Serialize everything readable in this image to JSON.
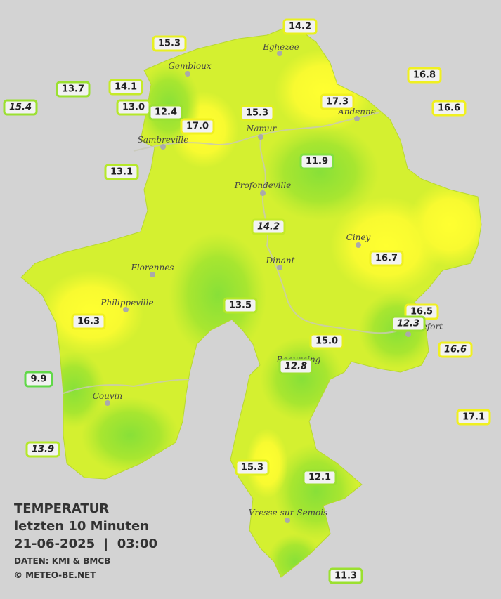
{
  "map": {
    "legend": {
      "title": "TEMPERATUR",
      "subtitle": "letzten 10 Minuten",
      "datetime": "21-06-2025  |  03:00",
      "source": "DATEN: KMI & BMCB",
      "copyright": "© METEO-BE.NET"
    },
    "cities": [
      "Gembloux",
      "Eghezee",
      "Andenne",
      "Namur",
      "Sambreville",
      "Profondeville",
      "Ciney",
      "Dinant",
      "Florennes",
      "Philippeville",
      "Beauraing",
      "Rochefort",
      "Couvin",
      "Vresse-sur-Semois"
    ],
    "stations": [
      {
        "label": "14.2",
        "italic": false,
        "border": "#e8f020"
      },
      {
        "label": "15.3",
        "italic": false,
        "border": "#e8f020"
      },
      {
        "label": "16.8",
        "italic": false,
        "border": "#f0f020"
      },
      {
        "label": "13.7",
        "italic": false,
        "border": "#9be030"
      },
      {
        "label": "14.1",
        "italic": false,
        "border": "#c5ea28"
      },
      {
        "label": "15.4",
        "italic": true,
        "border": "#9be030"
      },
      {
        "label": "13.0",
        "italic": false,
        "border": "#b5e82a"
      },
      {
        "label": "12.4",
        "italic": false,
        "border": "#9be030"
      },
      {
        "label": "17.3",
        "italic": false,
        "border": "#f0f020"
      },
      {
        "label": "16.6",
        "italic": false,
        "border": "#f0f020"
      },
      {
        "label": "15.3",
        "italic": false,
        "border": "#e0f020"
      },
      {
        "label": "17.0",
        "italic": false,
        "border": "#f0f020"
      },
      {
        "label": "11.9",
        "italic": false,
        "border": "#80e040"
      },
      {
        "label": "13.1",
        "italic": false,
        "border": "#b5e82a"
      },
      {
        "label": "14.2",
        "italic": true,
        "border": "#c5ea28"
      },
      {
        "label": "16.7",
        "italic": false,
        "border": "#f0f020"
      },
      {
        "label": "16.3",
        "italic": false,
        "border": "#f0f020"
      },
      {
        "label": "13.5",
        "italic": false,
        "border": "#b5e82a"
      },
      {
        "label": "16.5",
        "italic": false,
        "border": "#f0f020"
      },
      {
        "label": "12.3",
        "italic": true,
        "border": "#9be030"
      },
      {
        "label": "15.0",
        "italic": false,
        "border": "#e0f020"
      },
      {
        "label": "16.6",
        "italic": true,
        "border": "#f0f020"
      },
      {
        "label": "12.8",
        "italic": true,
        "border": "#9be030"
      },
      {
        "label": "9.9",
        "italic": false,
        "border": "#60d848"
      },
      {
        "label": "17.1",
        "italic": false,
        "border": "#f0f020"
      },
      {
        "label": "13.9",
        "italic": true,
        "border": "#b5e82a"
      },
      {
        "label": "15.3",
        "italic": false,
        "border": "#e0f020"
      },
      {
        "label": "12.1",
        "italic": false,
        "border": "#9be030"
      },
      {
        "label": "11.3",
        "italic": false,
        "border": "#9be030"
      }
    ]
  }
}
